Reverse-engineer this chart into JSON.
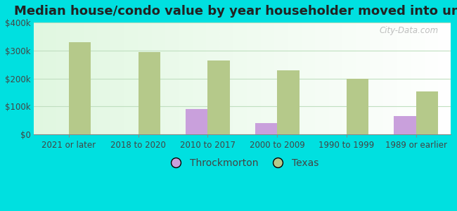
{
  "title": "Median house/condo value by year householder moved into unit",
  "categories": [
    "2021 or later",
    "2018 to 2020",
    "2010 to 2017",
    "2000 to 2009",
    "1990 to 1999",
    "1989 or earlier"
  ],
  "throckmorton_values": [
    0,
    0,
    90000,
    40000,
    0,
    65000
  ],
  "texas_values": [
    330000,
    295000,
    265000,
    230000,
    200000,
    155000
  ],
  "throckmorton_color": "#c9a0dc",
  "texas_color": "#b5c98a",
  "outer_background": "#00e0e0",
  "grid_color": "#c0dfc0",
  "ylim": [
    0,
    400000
  ],
  "yticks": [
    0,
    100000,
    200000,
    300000,
    400000
  ],
  "bar_width": 0.32,
  "legend_throckmorton": "Throckmorton",
  "legend_texas": "Texas",
  "watermark": "City-Data.com",
  "title_fontsize": 13,
  "tick_fontsize": 8.5,
  "legend_fontsize": 10
}
